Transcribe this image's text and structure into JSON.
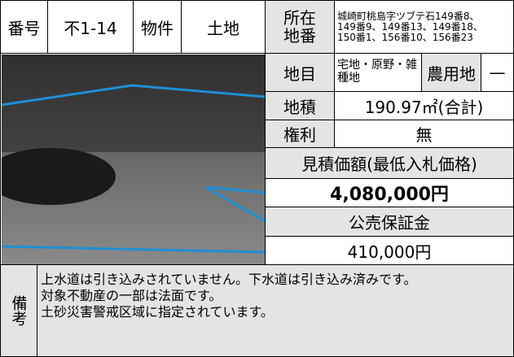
{
  "property": {
    "number_label": "番号",
    "number": "不1-14",
    "kind_label": "物件",
    "kind": "土地",
    "location_label": [
      "所在",
      "地番"
    ],
    "location": [
      "城崎町桃島字ツブテ石149番8、",
      "149番9、149番13、149番18、",
      "150番1、156番10、156番23"
    ],
    "land_category_label": "地目",
    "land_category": "宅地・原野・雑種地",
    "farmland_label": "農用地",
    "farmland": "—",
    "area_label": "地積",
    "area": "190.97㎡(合計)",
    "rights_label": "権利",
    "rights": "無",
    "estimate_label": "見積価額(最低入札価格)",
    "estimate": "4,080,000円",
    "deposit_label": "公売保証金",
    "deposit": "410,000円",
    "remarks_label": "備考",
    "remarks": [
      "上水道は引き込みされていません。下水道は引き込み済みです。",
      "対象不動産の一部は法面です。",
      "土砂災害警戒区域に指定されています。"
    ]
  }
}
